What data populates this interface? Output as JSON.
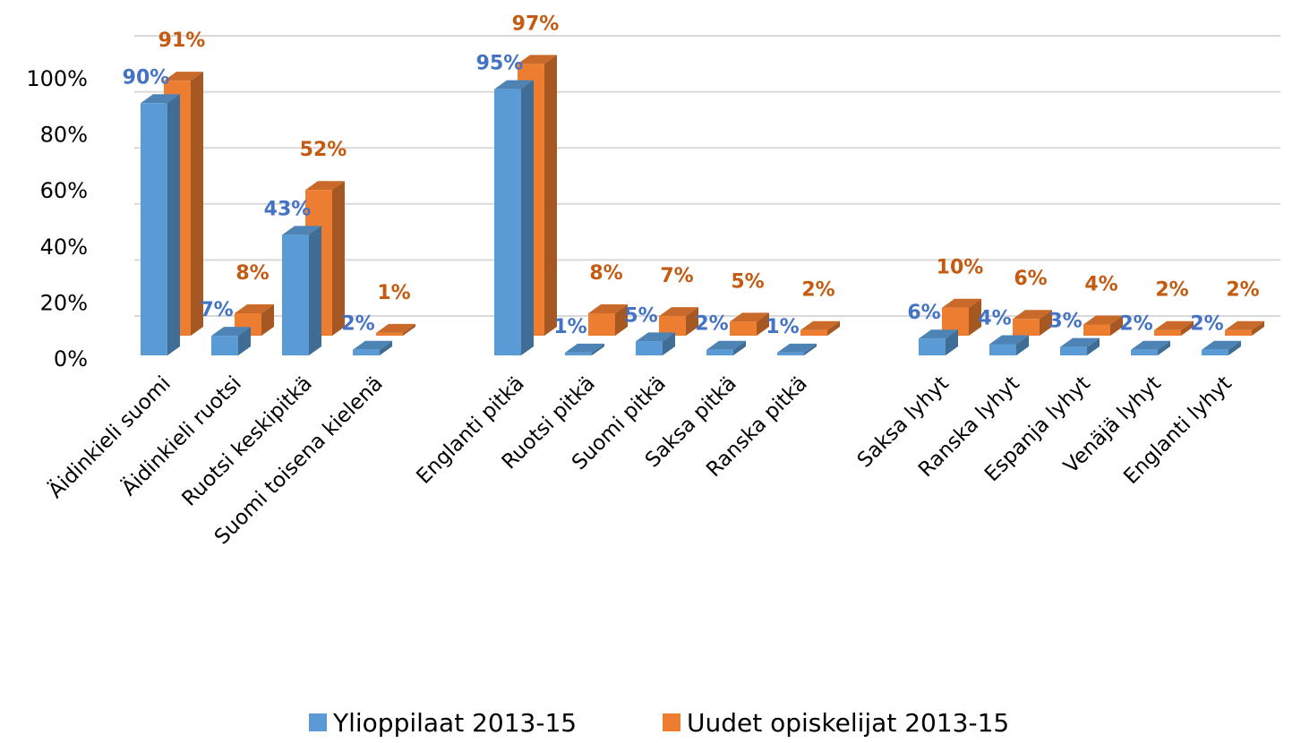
{
  "chart_data": {
    "type": "bar3d",
    "categories": [
      "Äidinkieli suomi",
      "Äidinkieli ruotsi",
      "Ruotsi keskipitkä",
      "Suomi toisena kielenä",
      null,
      "Englanti pitkä",
      "Ruotsi pitkä",
      "Suomi pitkä",
      "Saksa pitkä",
      "Ranska pitkä",
      null,
      "Saksa lyhyt",
      "Ranska lyhyt",
      "Espanja lyhyt",
      "Venäjä lyhyt",
      "Englanti lyhyt"
    ],
    "series": [
      {
        "name": "Ylioppilaat 2013-15",
        "color": "#5b9bd5",
        "label_color": "#4472c4",
        "values": [
          90,
          7,
          43,
          2,
          null,
          95,
          1,
          5,
          2,
          1,
          null,
          6,
          4,
          3,
          2,
          2
        ],
        "value_labels": [
          "90%",
          "7%",
          "43%",
          "2%",
          null,
          "95%",
          "1%",
          "5%",
          "2%",
          "1%",
          null,
          "6%",
          "4%",
          "3%",
          "2%",
          "2%"
        ]
      },
      {
        "name": "Uudet opiskelijat 2013-15",
        "color": "#ed7d31",
        "label_color": "#c55a11",
        "values": [
          91,
          8,
          52,
          1,
          null,
          97,
          8,
          7,
          5,
          2,
          null,
          10,
          6,
          4,
          2,
          2
        ],
        "value_labels": [
          "91%",
          "8%",
          "52%",
          "1%",
          null,
          "97%",
          "8%",
          "7%",
          "5%",
          "2%",
          null,
          "10%",
          "6%",
          "4%",
          "2%",
          "2%"
        ]
      }
    ],
    "ylim": [
      0,
      100
    ],
    "yticks": [
      {
        "value": 0,
        "label": "0%"
      },
      {
        "value": 20,
        "label": "20%"
      },
      {
        "value": 40,
        "label": "40%"
      },
      {
        "value": 60,
        "label": "60%"
      },
      {
        "value": 80,
        "label": "80%"
      },
      {
        "value": 100,
        "label": "100%"
      }
    ],
    "grid": true,
    "legend": "bottom"
  }
}
